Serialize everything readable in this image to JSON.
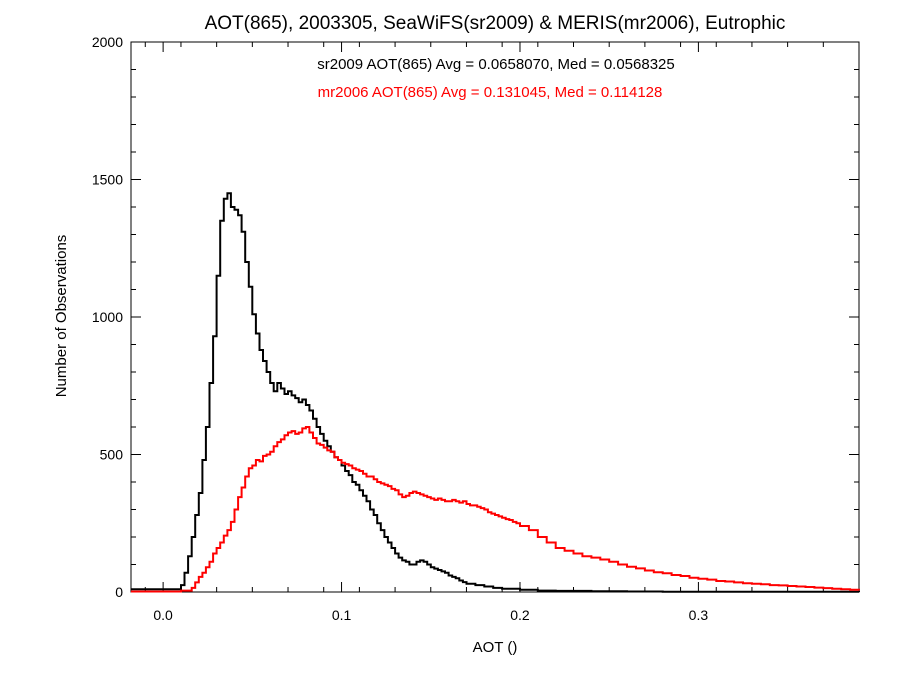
{
  "chart_data": {
    "type": "line",
    "title": "AOT(865), 2003305, SeaWiFS(sr2009) & MERIS(mr2006), Eutrophic",
    "xlabel": "AOT ()",
    "ylabel": "Number of Observations",
    "xlim": [
      -0.018,
      0.39
    ],
    "ylim": [
      0,
      2000
    ],
    "xticks": [
      0.0,
      0.1,
      0.2,
      0.3
    ],
    "xtick_labels": [
      "0.0",
      "0.1",
      "0.2",
      "0.3"
    ],
    "yticks": [
      0,
      500,
      1000,
      1500,
      2000
    ],
    "ytick_labels": [
      "0",
      "500",
      "1000",
      "1500",
      "2000"
    ],
    "grid": false,
    "annotations": [
      {
        "text": "sr2009 AOT(865) Avg = 0.0658070, Med = 0.0568325",
        "color": "#000000"
      },
      {
        "text": "mr2006 AOT(865) Avg = 0.131045, Med = 0.114128",
        "color": "#ff0000"
      }
    ],
    "series": [
      {
        "color": "#000000",
        "step": "histogram",
        "points": [
          [
            -0.018,
            10
          ],
          [
            0.005,
            10
          ],
          [
            0.01,
            25
          ],
          [
            0.012,
            70
          ],
          [
            0.014,
            130
          ],
          [
            0.016,
            200
          ],
          [
            0.018,
            280
          ],
          [
            0.02,
            360
          ],
          [
            0.022,
            480
          ],
          [
            0.024,
            600
          ],
          [
            0.026,
            760
          ],
          [
            0.028,
            930
          ],
          [
            0.03,
            1150
          ],
          [
            0.032,
            1350
          ],
          [
            0.034,
            1430
          ],
          [
            0.036,
            1450
          ],
          [
            0.038,
            1400
          ],
          [
            0.04,
            1390
          ],
          [
            0.042,
            1370
          ],
          [
            0.044,
            1310
          ],
          [
            0.046,
            1200
          ],
          [
            0.048,
            1110
          ],
          [
            0.05,
            1010
          ],
          [
            0.052,
            940
          ],
          [
            0.054,
            880
          ],
          [
            0.056,
            840
          ],
          [
            0.058,
            800
          ],
          [
            0.06,
            760
          ],
          [
            0.062,
            730
          ],
          [
            0.064,
            760
          ],
          [
            0.066,
            740
          ],
          [
            0.068,
            720
          ],
          [
            0.07,
            730
          ],
          [
            0.072,
            715
          ],
          [
            0.074,
            705
          ],
          [
            0.076,
            690
          ],
          [
            0.078,
            700
          ],
          [
            0.08,
            680
          ],
          [
            0.082,
            660
          ],
          [
            0.084,
            630
          ],
          [
            0.086,
            600
          ],
          [
            0.088,
            575
          ],
          [
            0.09,
            550
          ],
          [
            0.092,
            530
          ],
          [
            0.094,
            510
          ],
          [
            0.096,
            490
          ],
          [
            0.098,
            480
          ],
          [
            0.1,
            460
          ],
          [
            0.102,
            440
          ],
          [
            0.104,
            425
          ],
          [
            0.106,
            400
          ],
          [
            0.108,
            390
          ],
          [
            0.11,
            370
          ],
          [
            0.112,
            350
          ],
          [
            0.114,
            330
          ],
          [
            0.116,
            300
          ],
          [
            0.118,
            280
          ],
          [
            0.12,
            250
          ],
          [
            0.122,
            225
          ],
          [
            0.124,
            200
          ],
          [
            0.126,
            180
          ],
          [
            0.128,
            160
          ],
          [
            0.13,
            140
          ],
          [
            0.132,
            125
          ],
          [
            0.134,
            115
          ],
          [
            0.136,
            110
          ],
          [
            0.138,
            100
          ],
          [
            0.14,
            100
          ],
          [
            0.142,
            110
          ],
          [
            0.144,
            115
          ],
          [
            0.146,
            110
          ],
          [
            0.148,
            100
          ],
          [
            0.15,
            90
          ],
          [
            0.152,
            85
          ],
          [
            0.154,
            80
          ],
          [
            0.156,
            75
          ],
          [
            0.158,
            70
          ],
          [
            0.16,
            60
          ],
          [
            0.162,
            55
          ],
          [
            0.164,
            50
          ],
          [
            0.166,
            42
          ],
          [
            0.168,
            36
          ],
          [
            0.17,
            30
          ],
          [
            0.175,
            25
          ],
          [
            0.18,
            20
          ],
          [
            0.185,
            15
          ],
          [
            0.19,
            12
          ],
          [
            0.2,
            8
          ],
          [
            0.21,
            5
          ],
          [
            0.22,
            4
          ],
          [
            0.24,
            3
          ],
          [
            0.26,
            2
          ],
          [
            0.28,
            1
          ],
          [
            0.3,
            1
          ],
          [
            0.39,
            0
          ]
        ]
      },
      {
        "color": "#ff0000",
        "step": "histogram",
        "points": [
          [
            -0.018,
            2
          ],
          [
            0.01,
            5
          ],
          [
            0.016,
            15
          ],
          [
            0.018,
            35
          ],
          [
            0.02,
            55
          ],
          [
            0.022,
            70
          ],
          [
            0.024,
            90
          ],
          [
            0.026,
            110
          ],
          [
            0.028,
            140
          ],
          [
            0.03,
            160
          ],
          [
            0.032,
            180
          ],
          [
            0.034,
            205
          ],
          [
            0.036,
            225
          ],
          [
            0.038,
            255
          ],
          [
            0.04,
            300
          ],
          [
            0.042,
            345
          ],
          [
            0.044,
            380
          ],
          [
            0.046,
            420
          ],
          [
            0.048,
            450
          ],
          [
            0.05,
            460
          ],
          [
            0.052,
            480
          ],
          [
            0.054,
            475
          ],
          [
            0.056,
            495
          ],
          [
            0.058,
            500
          ],
          [
            0.06,
            510
          ],
          [
            0.062,
            530
          ],
          [
            0.064,
            545
          ],
          [
            0.066,
            555
          ],
          [
            0.068,
            570
          ],
          [
            0.07,
            580
          ],
          [
            0.072,
            585
          ],
          [
            0.074,
            575
          ],
          [
            0.076,
            580
          ],
          [
            0.078,
            595
          ],
          [
            0.08,
            600
          ],
          [
            0.082,
            580
          ],
          [
            0.084,
            560
          ],
          [
            0.086,
            540
          ],
          [
            0.088,
            535
          ],
          [
            0.09,
            525
          ],
          [
            0.092,
            515
          ],
          [
            0.094,
            510
          ],
          [
            0.096,
            490
          ],
          [
            0.098,
            480
          ],
          [
            0.1,
            470
          ],
          [
            0.102,
            465
          ],
          [
            0.104,
            460
          ],
          [
            0.106,
            450
          ],
          [
            0.108,
            445
          ],
          [
            0.11,
            440
          ],
          [
            0.112,
            430
          ],
          [
            0.114,
            420
          ],
          [
            0.116,
            420
          ],
          [
            0.118,
            410
          ],
          [
            0.12,
            400
          ],
          [
            0.122,
            395
          ],
          [
            0.124,
            390
          ],
          [
            0.126,
            385
          ],
          [
            0.128,
            375
          ],
          [
            0.13,
            370
          ],
          [
            0.132,
            355
          ],
          [
            0.134,
            345
          ],
          [
            0.136,
            350
          ],
          [
            0.138,
            360
          ],
          [
            0.14,
            365
          ],
          [
            0.142,
            360
          ],
          [
            0.144,
            355
          ],
          [
            0.146,
            350
          ],
          [
            0.148,
            345
          ],
          [
            0.15,
            340
          ],
          [
            0.152,
            335
          ],
          [
            0.154,
            340
          ],
          [
            0.156,
            335
          ],
          [
            0.158,
            330
          ],
          [
            0.16,
            330
          ],
          [
            0.162,
            335
          ],
          [
            0.164,
            330
          ],
          [
            0.166,
            325
          ],
          [
            0.168,
            330
          ],
          [
            0.17,
            320
          ],
          [
            0.172,
            315
          ],
          [
            0.174,
            315
          ],
          [
            0.176,
            310
          ],
          [
            0.178,
            305
          ],
          [
            0.18,
            300
          ],
          [
            0.182,
            290
          ],
          [
            0.184,
            285
          ],
          [
            0.186,
            280
          ],
          [
            0.188,
            275
          ],
          [
            0.19,
            270
          ],
          [
            0.192,
            265
          ],
          [
            0.194,
            262
          ],
          [
            0.196,
            255
          ],
          [
            0.198,
            250
          ],
          [
            0.2,
            240
          ],
          [
            0.205,
            225
          ],
          [
            0.21,
            200
          ],
          [
            0.215,
            180
          ],
          [
            0.22,
            160
          ],
          [
            0.225,
            150
          ],
          [
            0.23,
            140
          ],
          [
            0.235,
            130
          ],
          [
            0.24,
            125
          ],
          [
            0.245,
            118
          ],
          [
            0.25,
            110
          ],
          [
            0.255,
            100
          ],
          [
            0.26,
            92
          ],
          [
            0.265,
            86
          ],
          [
            0.27,
            78
          ],
          [
            0.275,
            72
          ],
          [
            0.28,
            68
          ],
          [
            0.285,
            62
          ],
          [
            0.29,
            58
          ],
          [
            0.295,
            52
          ],
          [
            0.3,
            48
          ],
          [
            0.305,
            45
          ],
          [
            0.31,
            40
          ],
          [
            0.315,
            38
          ],
          [
            0.32,
            35
          ],
          [
            0.325,
            32
          ],
          [
            0.33,
            30
          ],
          [
            0.335,
            28
          ],
          [
            0.34,
            25
          ],
          [
            0.345,
            24
          ],
          [
            0.35,
            22
          ],
          [
            0.355,
            20
          ],
          [
            0.36,
            18
          ],
          [
            0.365,
            16
          ],
          [
            0.37,
            14
          ],
          [
            0.375,
            12
          ],
          [
            0.38,
            10
          ],
          [
            0.385,
            8
          ],
          [
            0.39,
            6
          ]
        ]
      }
    ]
  }
}
